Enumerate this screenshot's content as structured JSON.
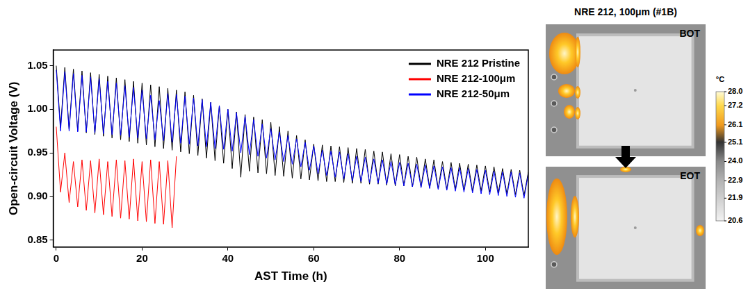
{
  "chart_data": {
    "type": "line",
    "x_label": "AST Time (h)",
    "y_label": "Open-circuit Voltage (V)",
    "xlim": [
      -0.7,
      110
    ],
    "xticks": [
      0,
      20,
      40,
      60,
      80,
      100
    ],
    "ylim": [
      0.842,
      1.068
    ],
    "yticks": [
      0.85,
      {
        "value": 0.9,
        "label": "0.90"
      },
      0.95,
      {
        "value": 1,
        "label": "1.00"
      },
      1.05
    ],
    "grid": false,
    "legend": "upper right",
    "x": [
      0,
      1,
      2,
      3,
      4,
      5,
      6,
      7,
      8,
      9,
      10,
      11,
      12,
      13,
      14,
      15,
      16,
      17,
      18,
      19,
      20,
      21,
      22,
      23,
      24,
      25,
      26,
      27,
      28,
      29,
      30,
      31,
      32,
      33,
      34,
      35,
      36,
      37,
      38,
      39,
      40,
      41,
      42,
      43,
      44,
      45,
      46,
      47,
      48,
      49,
      50,
      51,
      52,
      53,
      54,
      55,
      56,
      57,
      58,
      59,
      60,
      61,
      62,
      63,
      64,
      65,
      66,
      67,
      68,
      69,
      70,
      71,
      72,
      73,
      74,
      75,
      76,
      77,
      78,
      79,
      80,
      81,
      82,
      83,
      84,
      85,
      86,
      87,
      88,
      89,
      90,
      91,
      92,
      93,
      94,
      95,
      96,
      97,
      98,
      99,
      100,
      101,
      102,
      103,
      104,
      105,
      106,
      107,
      108,
      109,
      110
    ],
    "series": [
      {
        "name": "NRE 212 Pristine",
        "color": "#000000",
        "values": [
          1.05,
          0.979,
          1.048,
          0.977,
          1.046,
          0.975,
          1.044,
          0.973,
          1.042,
          0.971,
          1.04,
          0.969,
          1.038,
          0.967,
          1.036,
          0.965,
          1.034,
          0.963,
          1.032,
          0.961,
          1.03,
          0.959,
          1.028,
          0.957,
          1.026,
          0.955,
          1.024,
          0.953,
          1.022,
          0.951,
          1.02,
          0.949,
          1.016,
          0.947,
          1.012,
          0.944,
          1.008,
          0.941,
          1.004,
          0.938,
          1.0,
          0.932,
          0.997,
          0.922,
          0.994,
          0.929,
          0.991,
          0.927,
          0.988,
          0.926,
          0.985,
          0.924,
          0.98,
          0.923,
          0.975,
          0.921,
          0.97,
          0.92,
          0.965,
          0.919,
          0.96,
          0.918,
          0.959,
          0.917,
          0.958,
          0.917,
          0.957,
          0.916,
          0.956,
          0.915,
          0.955,
          0.915,
          0.954,
          0.914,
          0.952,
          0.914,
          0.951,
          0.913,
          0.949,
          0.912,
          0.948,
          0.912,
          0.946,
          0.911,
          0.945,
          0.911,
          0.943,
          0.91,
          0.942,
          0.909,
          0.94,
          0.908,
          0.939,
          0.908,
          0.938,
          0.907,
          0.937,
          0.906,
          0.936,
          0.906,
          0.935,
          0.905,
          0.934,
          0.904,
          0.932,
          0.903,
          0.931,
          0.902,
          0.93,
          0.901,
          0.928
        ]
      },
      {
        "name": "NRE 212-100μm",
        "color": "#ff0000",
        "values": [
          0.98,
          0.905,
          0.95,
          0.893,
          0.94,
          0.888,
          0.942,
          0.884,
          0.941,
          0.881,
          0.943,
          0.879,
          0.94,
          0.877,
          0.942,
          0.875,
          0.941,
          0.874,
          0.943,
          0.872,
          0.94,
          0.871,
          0.942,
          0.869,
          0.94,
          0.868,
          0.941,
          0.864,
          0.946,
          null,
          null,
          null,
          null,
          null,
          null,
          null,
          null,
          null,
          null,
          null,
          null,
          null,
          null,
          null,
          null,
          null,
          null,
          null,
          null,
          null,
          null,
          null,
          null,
          null,
          null,
          null,
          null,
          null,
          null,
          null,
          null,
          null,
          null,
          null,
          null,
          null,
          null,
          null,
          null,
          null,
          null,
          null,
          null,
          null,
          null,
          null,
          null,
          null,
          null,
          null,
          null,
          null,
          null,
          null,
          null,
          null,
          null,
          null,
          null,
          null,
          null,
          null,
          null,
          null,
          null,
          null,
          null,
          null,
          null,
          null,
          null,
          null,
          null,
          null,
          null,
          null,
          null,
          null,
          null,
          null,
          null
        ]
      },
      {
        "name": "NRE 212-50μm",
        "color": "#0000ff",
        "values": [
          1.045,
          0.975,
          1.043,
          0.975,
          1.041,
          0.974,
          1.039,
          0.974,
          1.037,
          0.973,
          1.035,
          0.972,
          1.032,
          0.971,
          1.03,
          0.97,
          1.027,
          0.968,
          1.025,
          0.967,
          1.022,
          0.966,
          1.016,
          0.965,
          1.01,
          0.964,
          1.018,
          0.962,
          1.017,
          0.961,
          1.015,
          0.96,
          1.013,
          0.958,
          1.011,
          0.957,
          1.008,
          0.955,
          1.004,
          0.954,
          1.0,
          0.952,
          0.996,
          0.95,
          0.992,
          0.948,
          0.988,
          0.946,
          0.983,
          0.944,
          0.978,
          0.942,
          0.974,
          0.94,
          0.97,
          0.937,
          0.966,
          0.934,
          0.962,
          0.93,
          0.958,
          0.926,
          0.953,
          0.924,
          0.952,
          0.922,
          0.951,
          0.92,
          0.949,
          0.918,
          0.946,
          0.917,
          0.945,
          0.916,
          0.943,
          0.915,
          0.942,
          0.914,
          0.94,
          0.913,
          0.939,
          0.912,
          0.938,
          0.911,
          0.937,
          0.91,
          0.936,
          0.909,
          0.935,
          0.908,
          0.934,
          0.907,
          0.933,
          0.906,
          0.933,
          0.905,
          0.932,
          0.904,
          0.931,
          0.903,
          0.93,
          0.902,
          0.929,
          0.901,
          0.928,
          0.9,
          0.928,
          0.899,
          0.927,
          0.898,
          0.926
        ]
      }
    ]
  },
  "thermal_panel": {
    "title": "NRE 212, 100μm (#1B)",
    "images": [
      {
        "label": "BOT"
      },
      {
        "label": "EOT"
      }
    ],
    "colorbar": {
      "unit": "°C",
      "range": [
        20.6,
        28.0
      ],
      "ticks": [
        {
          "value": 28,
          "label": "28.0"
        },
        27.2,
        26.1,
        25.1,
        {
          "value": 24,
          "label": "24.0"
        },
        22.9,
        21.9,
        20.6
      ]
    }
  }
}
